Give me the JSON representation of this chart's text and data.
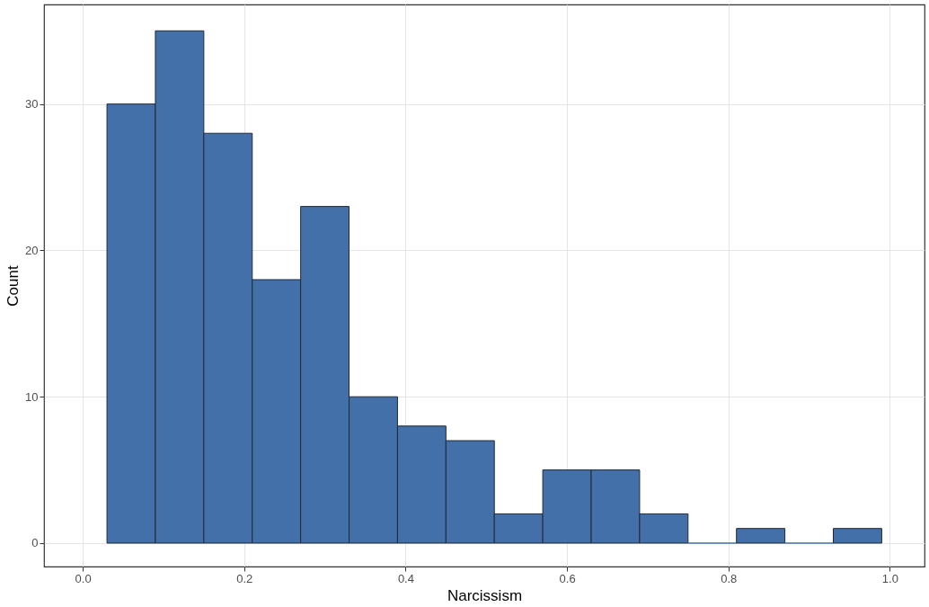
{
  "chart_data": {
    "type": "histogram",
    "xlabel": "Narcissism",
    "ylabel": "Count",
    "bins": [
      0.03,
      0.09,
      0.15,
      0.21,
      0.27,
      0.33,
      0.39,
      0.45,
      0.51,
      0.57,
      0.63,
      0.69,
      0.75,
      0.81,
      0.87,
      0.93,
      0.99
    ],
    "values": [
      30,
      35,
      28,
      18,
      23,
      10,
      8,
      7,
      2,
      5,
      5,
      2,
      0,
      1,
      0,
      1
    ],
    "color": "#4470a9",
    "xlim": [
      -0.048,
      1.043
    ],
    "ylim": [
      -1.6,
      36.8
    ],
    "xticks": [
      {
        "value": 0,
        "label": "0.0"
      },
      {
        "value": 0.2,
        "label": "0.2"
      },
      {
        "value": 0.4,
        "label": "0.4"
      },
      {
        "value": 0.6,
        "label": "0.6"
      },
      {
        "value": 0.8,
        "label": "0.8"
      },
      {
        "value": 1,
        "label": "1.0"
      }
    ],
    "yticks": [
      0,
      10,
      20,
      30
    ],
    "grid": true
  }
}
